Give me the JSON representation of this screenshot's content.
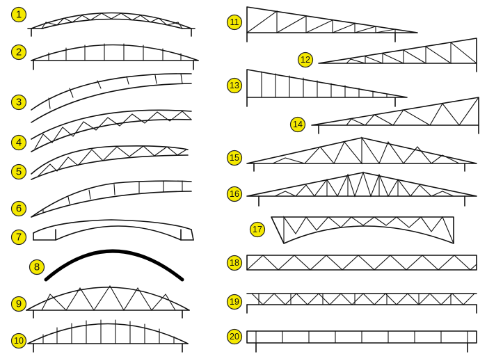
{
  "labels": [
    "1",
    "2",
    "3",
    "4",
    "5",
    "6",
    "7",
    "8",
    "9",
    "10",
    "11",
    "12",
    "13",
    "14",
    "15",
    "16",
    "17",
    "18",
    "19",
    "20"
  ],
  "trusses": [
    {
      "num": "1",
      "name": "curved-warren-truss"
    },
    {
      "num": "2",
      "name": "curved-vierendeel-truss"
    },
    {
      "num": "3",
      "name": "arched-vierendeel-rib"
    },
    {
      "num": "4",
      "name": "arched-warren-truss"
    },
    {
      "num": "5",
      "name": "arched-warren-truss-tapered"
    },
    {
      "num": "6",
      "name": "arched-tapered-vierendeel"
    },
    {
      "num": "7",
      "name": "arched-beam-with-haunches"
    },
    {
      "num": "8",
      "name": "solid-arch-rib"
    },
    {
      "num": "9",
      "name": "bowstring-warren-truss"
    },
    {
      "num": "10",
      "name": "bowstring-vertical-truss"
    },
    {
      "num": "11",
      "name": "mono-pitch-truss-left-high"
    },
    {
      "num": "12",
      "name": "mono-pitch-truss-right-high"
    },
    {
      "num": "13",
      "name": "mono-pitch-vertical-truss"
    },
    {
      "num": "14",
      "name": "mono-pitch-warren-truss"
    },
    {
      "num": "15",
      "name": "pitched-warren-truss"
    },
    {
      "num": "16",
      "name": "pitched-fink-truss"
    },
    {
      "num": "17",
      "name": "scissor-curved-truss"
    },
    {
      "num": "18",
      "name": "flat-warren-truss"
    },
    {
      "num": "19",
      "name": "flat-double-warren-truss"
    },
    {
      "num": "20",
      "name": "flat-vierendeel-truss"
    }
  ],
  "colors": {
    "badge": "#f5e900",
    "line": "#111111"
  }
}
